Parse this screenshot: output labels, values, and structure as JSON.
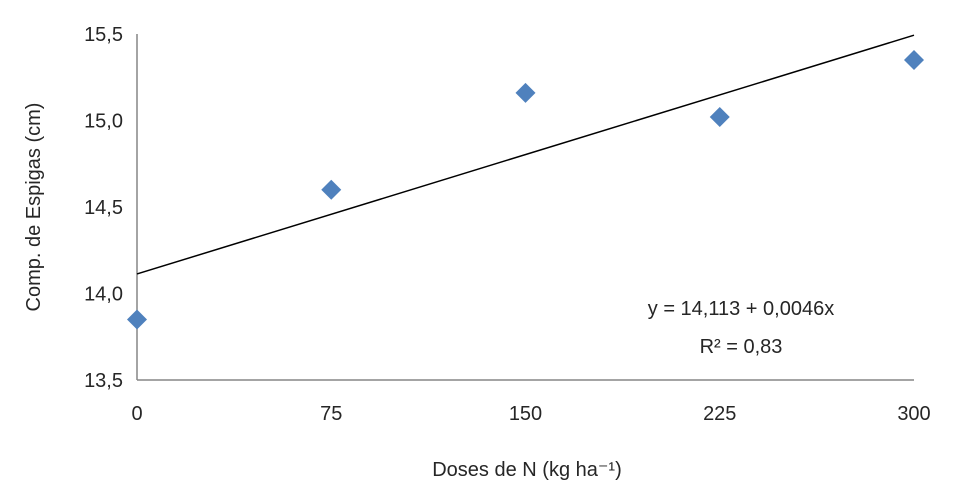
{
  "chart_data": {
    "type": "scatter",
    "xlabel": "Doses de N (kg ha⁻¹)",
    "ylabel": "Comp. de Espigas (cm)",
    "x_ticks": [
      "0",
      "75",
      "150",
      "225",
      "300"
    ],
    "y_ticks": [
      "13,5",
      "14,0",
      "14,5",
      "15,0",
      "15,5"
    ],
    "xlim": [
      0,
      300
    ],
    "ylim": [
      13.5,
      15.5
    ],
    "grid": false,
    "points": [
      {
        "x": 0,
        "y": 13.85
      },
      {
        "x": 75,
        "y": 14.6
      },
      {
        "x": 150,
        "y": 15.16
      },
      {
        "x": 225,
        "y": 15.02
      },
      {
        "x": 300,
        "y": 15.35
      }
    ],
    "trendline": {
      "intercept": 14.113,
      "slope": 0.0046
    },
    "equation": "y = 14,113 + 0,0046x",
    "r_squared": "R² = 0,83",
    "colors": {
      "marker": "#4f81bd",
      "line": "#000000",
      "axis": "#868686"
    }
  }
}
